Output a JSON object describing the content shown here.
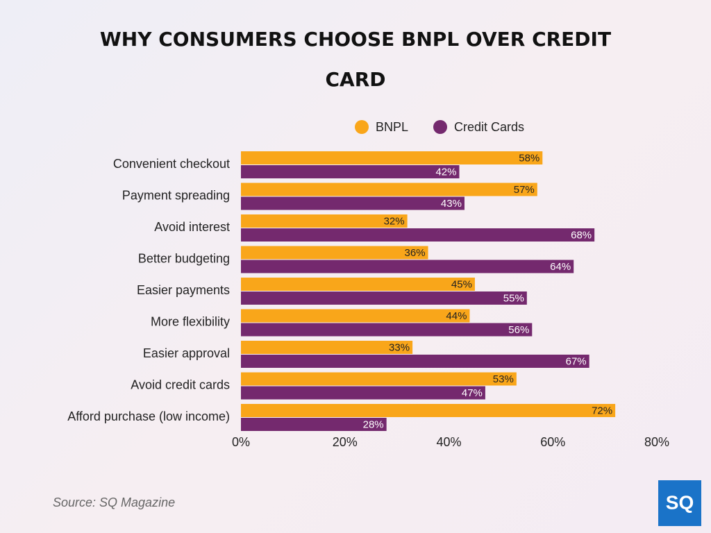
{
  "chart_data": {
    "type": "bar",
    "orientation": "horizontal",
    "title": "WHY CONSUMERS CHOOSE BNPL OVER CREDIT CARD",
    "categories": [
      "Convenient checkout",
      "Payment spreading",
      "Avoid interest",
      "Better budgeting",
      "Easier payments",
      "More flexibility",
      "Easier approval",
      "Avoid credit cards",
      "Afford purchase (low income)"
    ],
    "series": [
      {
        "name": "BNPL",
        "color": "#f9a61a",
        "values": [
          58,
          57,
          32,
          36,
          45,
          44,
          33,
          53,
          72
        ],
        "value_labels": [
          "58%",
          "57%",
          "32%",
          "36%",
          "45%",
          "44%",
          "33%",
          "53%",
          "72%"
        ]
      },
      {
        "name": "Credit Cards",
        "color": "#74296e",
        "values": [
          42,
          43,
          68,
          64,
          55,
          56,
          67,
          47,
          28
        ],
        "value_labels": [
          "42%",
          "43%",
          "68%",
          "64%",
          "55%",
          "56%",
          "67%",
          "47%",
          "28%"
        ]
      }
    ],
    "xlim": [
      0,
      80
    ],
    "xticks": [
      {
        "value": 0,
        "label": "0%"
      },
      {
        "value": 20,
        "label": "20%"
      },
      {
        "value": 40,
        "label": "40%"
      },
      {
        "value": 60,
        "label": "60%"
      },
      {
        "value": 80,
        "label": "80%"
      }
    ],
    "grid": false,
    "source": "Source: SQ Magazine",
    "logo": "SQ"
  }
}
